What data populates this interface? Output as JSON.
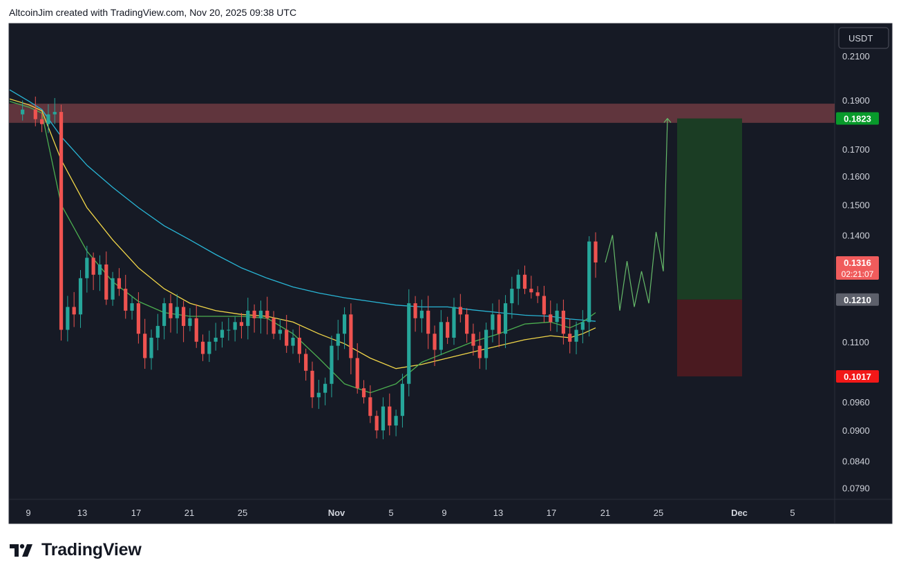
{
  "header": {
    "text": "AltcoinJim created with TradingView.com, Nov 20, 2025 09:38 UTC"
  },
  "footer": {
    "brand": "TradingView"
  },
  "colors": {
    "background": "#161a25",
    "up": "#26a69a",
    "down": "#ef5350",
    "ma_cyan": "#29b6d6",
    "ma_yellow": "#f2d749",
    "ma_green": "#4caf50",
    "resistance_zone": "#7a3f46",
    "target_zone": "#1b3d24",
    "stop_zone": "#4a1a20",
    "projection": "#66bb6a"
  },
  "chart_data": {
    "type": "line",
    "symbol_currency": "USDT",
    "y_scale": "log",
    "ylim": [
      0.077,
      0.226
    ],
    "y_ticks": [
      "0.2100",
      "0.1900",
      "0.1700",
      "0.1600",
      "0.1500",
      "0.1400",
      "0.1100",
      "0.0960",
      "0.0900",
      "0.0840",
      "0.0790"
    ],
    "x_ticks": [
      "9",
      "13",
      "17",
      "21",
      "25",
      "Nov",
      "5",
      "9",
      "13",
      "17",
      "21",
      "25",
      "Dec",
      "5"
    ],
    "price_labels": {
      "target": "0.1823",
      "current": "0.1316",
      "countdown": "02:21:07",
      "entry": "0.1210",
      "stop": "0.1017"
    },
    "zones": {
      "resistance": [
        0.1805,
        0.1885
      ],
      "target": [
        0.121,
        0.1823
      ],
      "stop": [
        0.1017,
        0.121
      ]
    },
    "series": [
      {
        "values": [
          [
            0,
            0.1945
          ],
          [
            3,
            0.1895
          ],
          [
            5,
            0.186
          ],
          [
            8,
            0.175
          ],
          [
            12,
            0.164
          ],
          [
            16,
            0.156
          ],
          [
            20,
            0.149
          ],
          [
            24,
            0.143
          ],
          [
            28,
            0.1385
          ],
          [
            32,
            0.134
          ],
          [
            36,
            0.13
          ],
          [
            40,
            0.127
          ],
          [
            44,
            0.1245
          ],
          [
            48,
            0.1228
          ],
          [
            52,
            0.1215
          ],
          [
            56,
            0.1205
          ],
          [
            60,
            0.1195
          ],
          [
            64,
            0.119
          ],
          [
            68,
            0.119
          ],
          [
            72,
            0.1182
          ],
          [
            76,
            0.1175
          ],
          [
            80,
            0.1168
          ],
          [
            84,
            0.1165
          ],
          [
            87,
            0.1158
          ],
          [
            89,
            0.1155
          ],
          [
            91,
            0.1152
          ]
        ]
      },
      {
        "values": [
          [
            0,
            0.1905
          ],
          [
            3,
            0.188
          ],
          [
            5,
            0.1855
          ],
          [
            8,
            0.166
          ],
          [
            12,
            0.149
          ],
          [
            16,
            0.1385
          ],
          [
            20,
            0.13
          ],
          [
            24,
            0.124
          ],
          [
            28,
            0.12
          ],
          [
            32,
            0.118
          ],
          [
            36,
            0.117
          ],
          [
            40,
            0.1165
          ],
          [
            44,
            0.115
          ],
          [
            48,
            0.112
          ],
          [
            52,
            0.1095
          ],
          [
            56,
            0.106
          ],
          [
            60,
            0.1035
          ],
          [
            64,
            0.1045
          ],
          [
            68,
            0.106
          ],
          [
            72,
            0.1075
          ],
          [
            76,
            0.109
          ],
          [
            80,
            0.1105
          ],
          [
            84,
            0.1115
          ],
          [
            87,
            0.111
          ],
          [
            89,
            0.112
          ],
          [
            91,
            0.1135
          ]
        ]
      },
      {
        "values": [
          [
            0,
            0.1895
          ],
          [
            3,
            0.187
          ],
          [
            5,
            0.1845
          ],
          [
            8,
            0.15
          ],
          [
            12,
            0.135
          ],
          [
            16,
            0.126
          ],
          [
            20,
            0.1205
          ],
          [
            24,
            0.1175
          ],
          [
            28,
            0.1165
          ],
          [
            32,
            0.1165
          ],
          [
            36,
            0.1165
          ],
          [
            40,
            0.116
          ],
          [
            44,
            0.112
          ],
          [
            48,
            0.106
          ],
          [
            52,
            0.1
          ],
          [
            56,
            0.098
          ],
          [
            60,
            0.1
          ],
          [
            64,
            0.105
          ],
          [
            68,
            0.1075
          ],
          [
            72,
            0.11
          ],
          [
            76,
            0.112
          ],
          [
            80,
            0.1145
          ],
          [
            84,
            0.115
          ],
          [
            87,
            0.1135
          ],
          [
            89,
            0.115
          ],
          [
            91,
            0.1175
          ]
        ]
      },
      {
        "values": [
          [
            0,
            0.184
          ],
          [
            2,
            0.186
          ],
          [
            4,
            0.182
          ],
          [
            5,
            0.18
          ],
          [
            6,
            0.184
          ],
          [
            7,
            0.185
          ],
          [
            8,
            0.113
          ],
          [
            9,
            0.119
          ],
          [
            10,
            0.117
          ],
          [
            11,
            0.127
          ],
          [
            12,
            0.133
          ],
          [
            13,
            0.128
          ],
          [
            14,
            0.131
          ],
          [
            15,
            0.121
          ],
          [
            16,
            0.127
          ],
          [
            17,
            0.124
          ],
          [
            18,
            0.118
          ],
          [
            19,
            0.12
          ],
          [
            20,
            0.112
          ],
          [
            21,
            0.106
          ],
          [
            22,
            0.111
          ],
          [
            23,
            0.114
          ],
          [
            24,
            0.12
          ],
          [
            25,
            0.116
          ],
          [
            26,
            0.119
          ],
          [
            27,
            0.114
          ],
          [
            28,
            0.116
          ],
          [
            29,
            0.11
          ],
          [
            30,
            0.107
          ],
          [
            31,
            0.11
          ],
          [
            32,
            0.111
          ],
          [
            33,
            0.113
          ],
          [
            34,
            0.113
          ],
          [
            35,
            0.115
          ],
          [
            36,
            0.114
          ],
          [
            37,
            0.118
          ],
          [
            38,
            0.116
          ],
          [
            39,
            0.118
          ],
          [
            40,
            0.116
          ],
          [
            41,
            0.112
          ],
          [
            42,
            0.113
          ],
          [
            43,
            0.109
          ],
          [
            44,
            0.111
          ],
          [
            45,
            0.107
          ],
          [
            46,
            0.103
          ],
          [
            47,
            0.097
          ],
          [
            48,
            0.098
          ],
          [
            49,
            0.1
          ],
          [
            50,
            0.109
          ],
          [
            51,
            0.112
          ],
          [
            52,
            0.117
          ],
          [
            53,
            0.106
          ],
          [
            54,
            0.099
          ],
          [
            55,
            0.097
          ],
          [
            56,
            0.093
          ],
          [
            57,
            0.09
          ],
          [
            58,
            0.095
          ],
          [
            59,
            0.091
          ],
          [
            60,
            0.093
          ],
          [
            61,
            0.1
          ],
          [
            62,
            0.12
          ],
          [
            63,
            0.116
          ],
          [
            64,
            0.118
          ],
          [
            65,
            0.112
          ],
          [
            66,
            0.108
          ],
          [
            67,
            0.115
          ],
          [
            68,
            0.111
          ],
          [
            69,
            0.119
          ],
          [
            70,
            0.117
          ],
          [
            71,
            0.112
          ],
          [
            72,
            0.109
          ],
          [
            73,
            0.106
          ],
          [
            74,
            0.113
          ],
          [
            75,
            0.117
          ],
          [
            76,
            0.112
          ],
          [
            77,
            0.12
          ],
          [
            78,
            0.124
          ],
          [
            79,
            0.128
          ],
          [
            80,
            0.124
          ],
          [
            81,
            0.123
          ],
          [
            82,
            0.122
          ],
          [
            83,
            0.117
          ],
          [
            84,
            0.115
          ],
          [
            85,
            0.118
          ],
          [
            86,
            0.112
          ],
          [
            87,
            0.11
          ],
          [
            88,
            0.113
          ],
          [
            89,
            0.115
          ],
          [
            90,
            0.138
          ],
          [
            91,
            0.1316
          ]
        ]
      },
      {
        "values": [
          [
            91,
            0.1316
          ],
          [
            92,
            0.14
          ],
          [
            93,
            0.118
          ],
          [
            94,
            0.132
          ],
          [
            95,
            0.119
          ],
          [
            96,
            0.129
          ],
          [
            97,
            0.12
          ],
          [
            98,
            0.141
          ],
          [
            99,
            0.129
          ],
          [
            100,
            0.1823
          ]
        ]
      }
    ]
  }
}
